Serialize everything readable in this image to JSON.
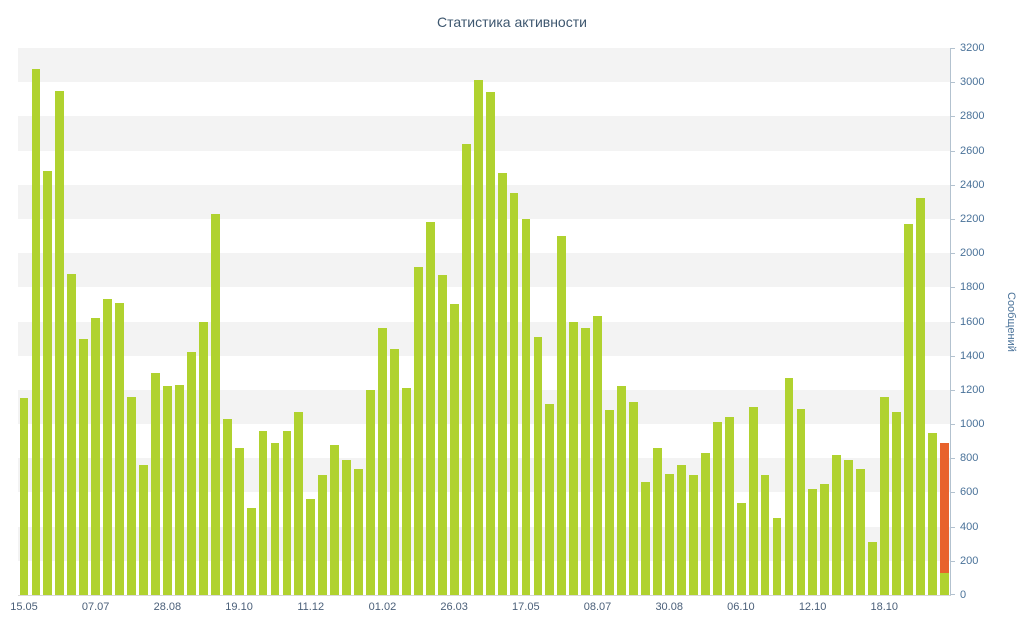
{
  "title": "Статистика активности",
  "chart_data": {
    "type": "bar",
    "title": "Статистика активности",
    "xlabel": "",
    "ylabel": "Сообщений",
    "ylim": [
      0,
      3200
    ],
    "y_tick_step": 200,
    "grid": "alternating horizontal bands every 200 units",
    "legend_position": "none",
    "bar_color": "#b0d22f",
    "highlight_color": "#e8622c",
    "band_color": "#f3f3f3",
    "x_tick_labels": [
      "15.05",
      "07.07",
      "28.08",
      "19.10",
      "11.12",
      "01.02",
      "26.03",
      "17.05",
      "08.07",
      "30.08",
      "06.10",
      "12.10",
      "18.10"
    ],
    "x_tick_every": 6,
    "values": [
      1150,
      3080,
      2480,
      2950,
      1880,
      1500,
      1620,
      1730,
      1710,
      1160,
      760,
      1300,
      1220,
      1230,
      1420,
      1600,
      2230,
      1030,
      860,
      510,
      960,
      890,
      960,
      1070,
      560,
      700,
      880,
      790,
      740,
      1200,
      1560,
      1440,
      1210,
      1920,
      2180,
      1870,
      1700,
      2640,
      3010,
      2940,
      2470,
      2350,
      2200,
      1510,
      1120,
      2100,
      1600,
      1560,
      1630,
      1080,
      1220,
      1130,
      660,
      860,
      710,
      760,
      700,
      830,
      1010,
      1040,
      540,
      1100,
      700,
      450,
      1270,
      1090,
      620,
      650,
      820,
      790,
      740,
      310,
      1160,
      1070,
      2170,
      2320,
      950,
      890
    ],
    "last_bar": {
      "total": 890,
      "green_base": 130,
      "color": "#e8622c"
    }
  },
  "colors": {
    "title_text": "#3e576f",
    "y_axis_text": "#4a7299",
    "x_axis_text": "#4a5f79",
    "axis_line": "#b3c2cf"
  }
}
